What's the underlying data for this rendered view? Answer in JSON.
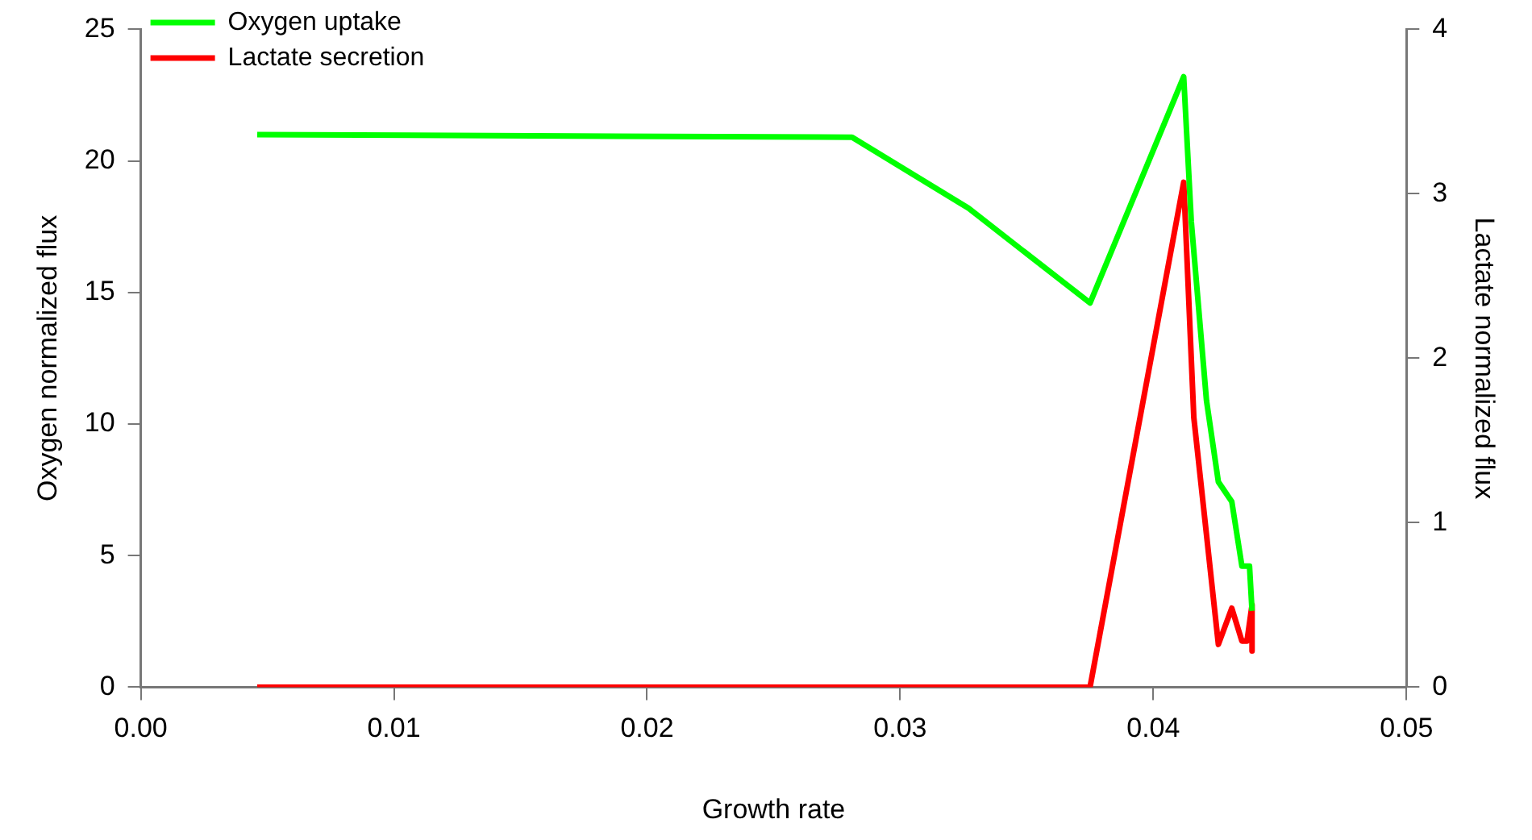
{
  "chart_data": {
    "type": "line",
    "xlabel": "Growth rate",
    "ylabel": "Oxygen normalized flux",
    "y2label": "Lactate normalized flux",
    "xlim": [
      0,
      0.05
    ],
    "xticks": [
      {
        "value": 0,
        "label": "0.00"
      },
      {
        "value": 0.01,
        "label": "0.01"
      },
      {
        "value": 0.02,
        "label": "0.02"
      },
      {
        "value": 0.03,
        "label": "0.03"
      },
      {
        "value": 0.04,
        "label": "0.04"
      },
      {
        "value": 0.05,
        "label": "0.05"
      }
    ],
    "ylim": [
      0,
      25
    ],
    "yticks": [
      0,
      5,
      10,
      15,
      20,
      25
    ],
    "y2lim": [
      0,
      4
    ],
    "y2ticks": [
      0,
      1,
      2,
      3,
      4
    ],
    "legend": "top left",
    "grid": false,
    "marker": "none",
    "line_style": "solid",
    "series": [
      {
        "name": "Oxygen uptake",
        "color": "#00ff00",
        "x": [
          0.0046,
          0.0281,
          0.0327,
          0.0375,
          0.0412,
          0.0415,
          0.0421,
          0.04257,
          0.0431,
          0.0435,
          0.0438,
          0.0439
        ],
        "values": [
          21,
          20.9,
          18.2,
          14.6,
          23.2,
          17.7,
          10.9,
          7.8,
          7.05,
          4.6,
          4.6,
          2.9
        ]
      },
      {
        "name": "Lactate secretion",
        "color": "#ff0000",
        "axis": "y2",
        "x": [
          0.0046,
          0.0375,
          0.0412,
          0.0416,
          0.04257,
          0.0431,
          0.0435,
          0.0437,
          0.0439,
          0.0439
        ],
        "values": [
          0,
          0,
          3.07,
          1.64,
          0.26,
          0.48,
          0.28,
          0.28,
          0.5,
          0.22
        ]
      }
    ]
  }
}
